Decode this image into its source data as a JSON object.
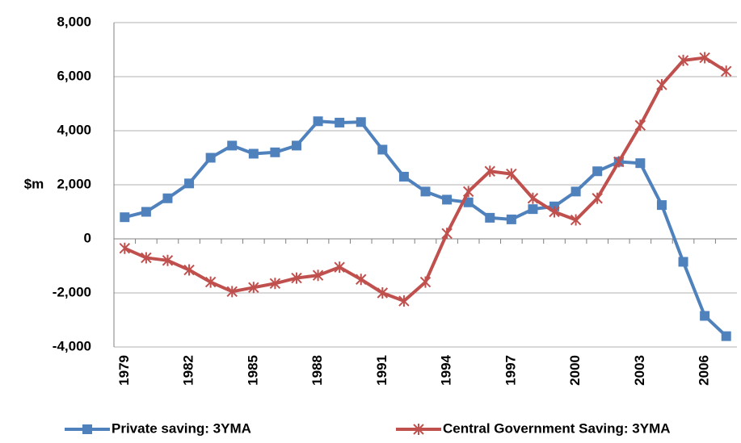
{
  "chart_data": {
    "type": "line",
    "y_label": "$m",
    "categories": [
      "1979",
      null,
      null,
      "1982",
      null,
      null,
      "1985",
      null,
      null,
      "1988",
      null,
      null,
      "1991",
      null,
      null,
      "1994",
      null,
      null,
      "1997",
      null,
      null,
      "2000",
      null,
      null,
      "2003",
      null,
      null,
      "2006",
      null
    ],
    "series": [
      {
        "name": "Private saving: 3YMA",
        "color": "#4f81bd",
        "marker": "square",
        "values": [
          800,
          1000,
          1500,
          2050,
          3000,
          3450,
          3150,
          3200,
          3450,
          4350,
          4300,
          4320,
          3300,
          2300,
          1750,
          1450,
          1350,
          780,
          720,
          1100,
          1200,
          1750,
          2500,
          2850,
          2800,
          1250,
          -850,
          -2850,
          -3600
        ]
      },
      {
        "name": "Central Government Saving: 3YMA",
        "color": "#c0504d",
        "marker": "asterisk",
        "values": [
          -350,
          -700,
          -800,
          -1150,
          -1600,
          -1950,
          -1800,
          -1650,
          -1450,
          -1350,
          -1050,
          -1500,
          -2000,
          -2300,
          -1600,
          200,
          1750,
          2500,
          2400,
          1500,
          1000,
          700,
          1500,
          2850,
          4200,
          5700,
          6600,
          6700,
          6200
        ]
      }
    ],
    "ylim": [
      -4000,
      8000
    ],
    "yticks": [
      {
        "value": -4000,
        "label": "-4,000"
      },
      {
        "value": -2000,
        "label": "-2,000"
      },
      0,
      {
        "value": 2000,
        "label": "2,000"
      },
      {
        "value": 4000,
        "label": "4,000"
      },
      {
        "value": 6000,
        "label": "6,000"
      },
      {
        "value": 8000,
        "label": "8,000"
      }
    ],
    "grid": true,
    "legend": "bottom"
  }
}
